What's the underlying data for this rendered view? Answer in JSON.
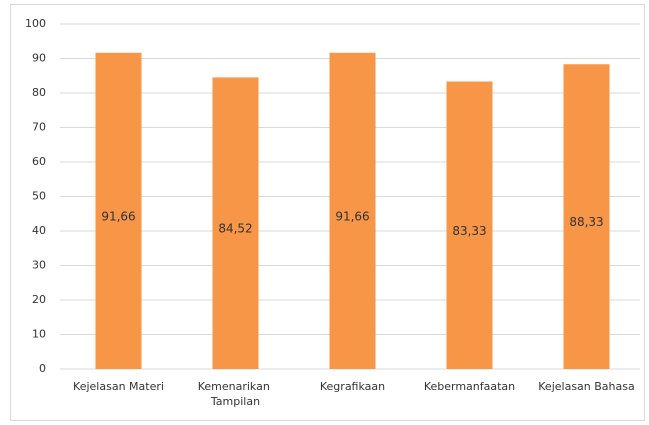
{
  "chart_data": {
    "type": "bar",
    "categories": [
      "Kejelasan Materi",
      "Kemenarikan Tampilan",
      "Kegrafikaan",
      "Kebermanfaatan",
      "Kejelasan Bahasa"
    ],
    "values": [
      91.66,
      84.52,
      91.66,
      83.33,
      88.33
    ],
    "value_labels": [
      "91,66",
      "84,52",
      "91,66",
      "83,33",
      "88,33"
    ],
    "color": "#f79646",
    "ylim": [
      0,
      100
    ],
    "yticks": [
      0,
      10,
      20,
      30,
      40,
      50,
      60,
      70,
      80,
      90,
      100
    ],
    "grid": true
  }
}
